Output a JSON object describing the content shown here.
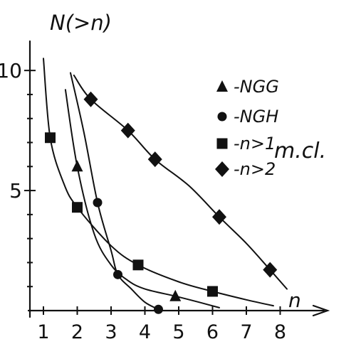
{
  "chart_data": {
    "type": "line",
    "title": "",
    "ylabel": "N(>n)",
    "xlabel": "n",
    "x_ticks": [
      "1",
      "2",
      "3",
      "4",
      "5",
      "6",
      "7",
      "8"
    ],
    "y_ticks": [
      "5",
      "10"
    ],
    "xlim": [
      0.6,
      9.4
    ],
    "ylim": [
      0,
      11.1
    ],
    "legend_position": "right",
    "units_label": "m.cl.",
    "series": [
      {
        "name": "-NGG",
        "marker": "triangle",
        "points": [
          [
            2.0,
            6.0
          ],
          [
            4.9,
            0.6
          ]
        ],
        "curve": [
          [
            1.65,
            9.2
          ],
          [
            2.0,
            6.0
          ],
          [
            2.5,
            3.2
          ],
          [
            3.0,
            1.9
          ],
          [
            3.5,
            1.25
          ],
          [
            4.0,
            0.9
          ],
          [
            4.9,
            0.6
          ],
          [
            5.6,
            0.35
          ],
          [
            6.2,
            0.12
          ]
        ]
      },
      {
        "name": "-NGH",
        "marker": "circle",
        "points": [
          [
            2.6,
            4.5
          ],
          [
            3.2,
            1.5
          ],
          [
            4.4,
            0.05
          ]
        ],
        "curve": [
          [
            1.8,
            9.9
          ],
          [
            2.2,
            7.4
          ],
          [
            2.6,
            4.5
          ],
          [
            3.0,
            2.5
          ],
          [
            3.2,
            1.5
          ],
          [
            3.6,
            0.9
          ],
          [
            4.0,
            0.35
          ],
          [
            4.4,
            0.05
          ]
        ]
      },
      {
        "name": "-n>1",
        "marker": "square",
        "points": [
          [
            1.2,
            7.2
          ],
          [
            2.0,
            4.3
          ],
          [
            3.8,
            1.9
          ],
          [
            6.0,
            0.8
          ]
        ],
        "curve": [
          [
            1.0,
            10.5
          ],
          [
            1.2,
            7.2
          ],
          [
            1.6,
            5.3
          ],
          [
            2.0,
            4.3
          ],
          [
            3.0,
            2.7
          ],
          [
            3.8,
            1.9
          ],
          [
            5.0,
            1.2
          ],
          [
            6.0,
            0.8
          ],
          [
            7.0,
            0.45
          ],
          [
            7.8,
            0.2
          ]
        ]
      },
      {
        "name": "-n>2",
        "marker": "diamond",
        "points": [
          [
            2.4,
            8.8
          ],
          [
            3.5,
            7.5
          ],
          [
            4.3,
            6.3
          ],
          [
            6.2,
            3.9
          ],
          [
            7.7,
            1.7
          ]
        ],
        "curve": [
          [
            1.9,
            9.8
          ],
          [
            2.4,
            8.8
          ],
          [
            3.5,
            7.5
          ],
          [
            4.3,
            6.3
          ],
          [
            5.3,
            5.2
          ],
          [
            6.2,
            3.9
          ],
          [
            7.0,
            2.8
          ],
          [
            7.7,
            1.7
          ],
          [
            8.2,
            0.9
          ]
        ]
      }
    ]
  }
}
